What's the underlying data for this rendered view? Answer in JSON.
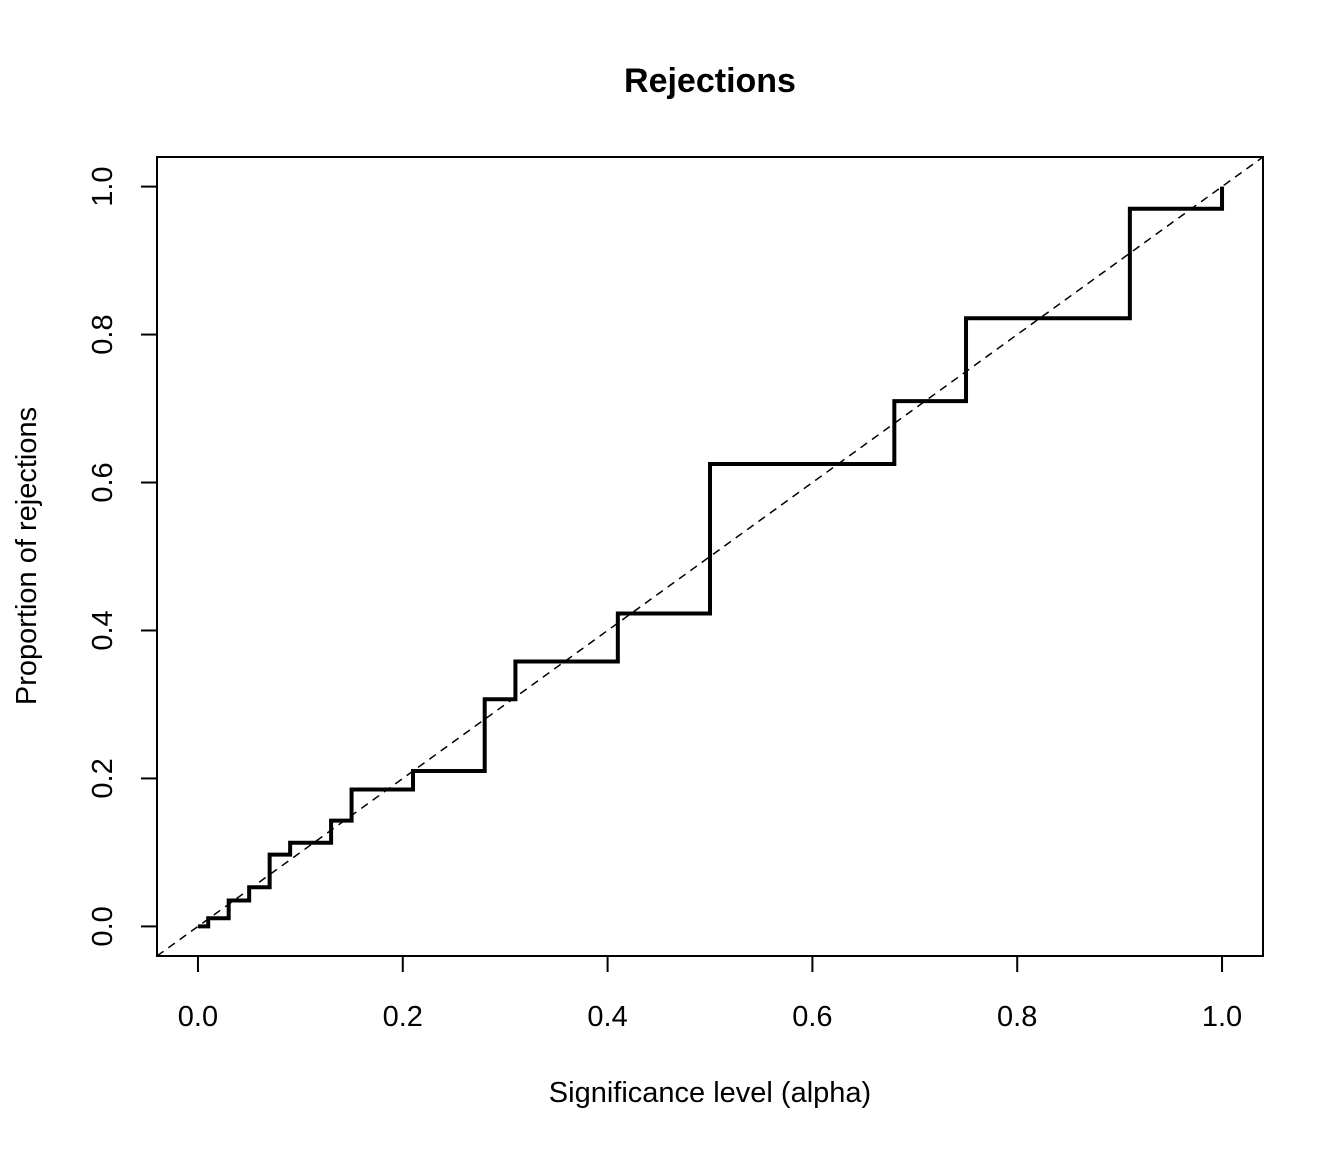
{
  "chart_data": {
    "type": "line",
    "title": "Rejections",
    "xlabel": "Significance level (alpha)",
    "ylabel": "Proportion of rejections",
    "xlim": [
      -0.04,
      1.04
    ],
    "ylim": [
      -0.04,
      1.04
    ],
    "x_ticks": [
      0.0,
      0.2,
      0.4,
      0.6,
      0.8,
      1.0
    ],
    "x_tick_labels": [
      "0.0",
      "0.2",
      "0.4",
      "0.6",
      "0.8",
      "1.0"
    ],
    "y_ticks": [
      0.0,
      0.2,
      0.4,
      0.6,
      0.8,
      1.0
    ],
    "y_tick_labels": [
      "0.0",
      "0.2",
      "0.4",
      "0.6",
      "0.8",
      "1.0"
    ],
    "grid": false,
    "legend": "none",
    "series": [
      {
        "style": "step",
        "line": "solid",
        "color": "#000000",
        "x": [
          0.0,
          0.01,
          0.03,
          0.05,
          0.07,
          0.09,
          0.13,
          0.15,
          0.21,
          0.28,
          0.31,
          0.41,
          0.5,
          0.68,
          0.75,
          0.91,
          1.0
        ],
        "y": [
          0.0,
          0.011,
          0.035,
          0.053,
          0.097,
          0.113,
          0.143,
          0.185,
          0.21,
          0.307,
          0.358,
          0.423,
          0.625,
          0.71,
          0.822,
          0.97,
          1.0
        ]
      },
      {
        "style": "reference",
        "line": "dashed",
        "color": "#000000",
        "x": [
          -0.04,
          1.04
        ],
        "y": [
          -0.04,
          1.04
        ]
      }
    ]
  }
}
